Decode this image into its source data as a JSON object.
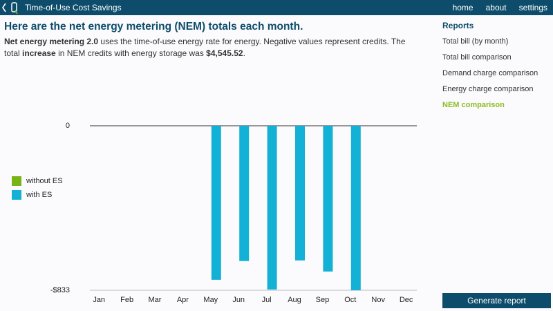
{
  "header": {
    "title": "Time-of-Use Cost Savings",
    "nav": [
      "home",
      "about",
      "settings"
    ]
  },
  "intro": {
    "heading": "Here are the net energy metering (NEM) totals each month.",
    "paragraph": [
      "Net energy metering 2.0",
      "uses the time-of-use energy rate for energy. Negative values represent credits. The total",
      "increase",
      "in NEM credits with energy storage was",
      "$4,545.52",
      "."
    ]
  },
  "sidebar": {
    "title": "Reports",
    "items": [
      "Total bill (by month)",
      "Total bill comparison",
      "Demand charge comparison",
      "Energy charge comparison",
      "NEM comparison"
    ],
    "active": 4,
    "button": "Generate report"
  },
  "chart_data": {
    "type": "bar",
    "categories": [
      "Jan",
      "Feb",
      "Mar",
      "Apr",
      "May",
      "Jun",
      "Jul",
      "Aug",
      "Sep",
      "Oct",
      "Nov",
      "Dec"
    ],
    "series": [
      {
        "name": "without ES",
        "color": "#7ab317",
        "values": [
          0,
          0,
          0,
          0,
          0,
          0,
          0,
          0,
          0,
          0,
          0,
          0
        ]
      },
      {
        "name": "with ES",
        "color": "#13b1d6",
        "values": [
          0,
          0,
          0,
          0,
          -780,
          -685,
          -829,
          -682,
          -738,
          -833,
          0,
          0
        ]
      }
    ],
    "ylim": [
      -833,
      0
    ],
    "yticks": [
      {
        "value": -833,
        "label": "-$833"
      },
      0
    ],
    "legend": "left"
  }
}
